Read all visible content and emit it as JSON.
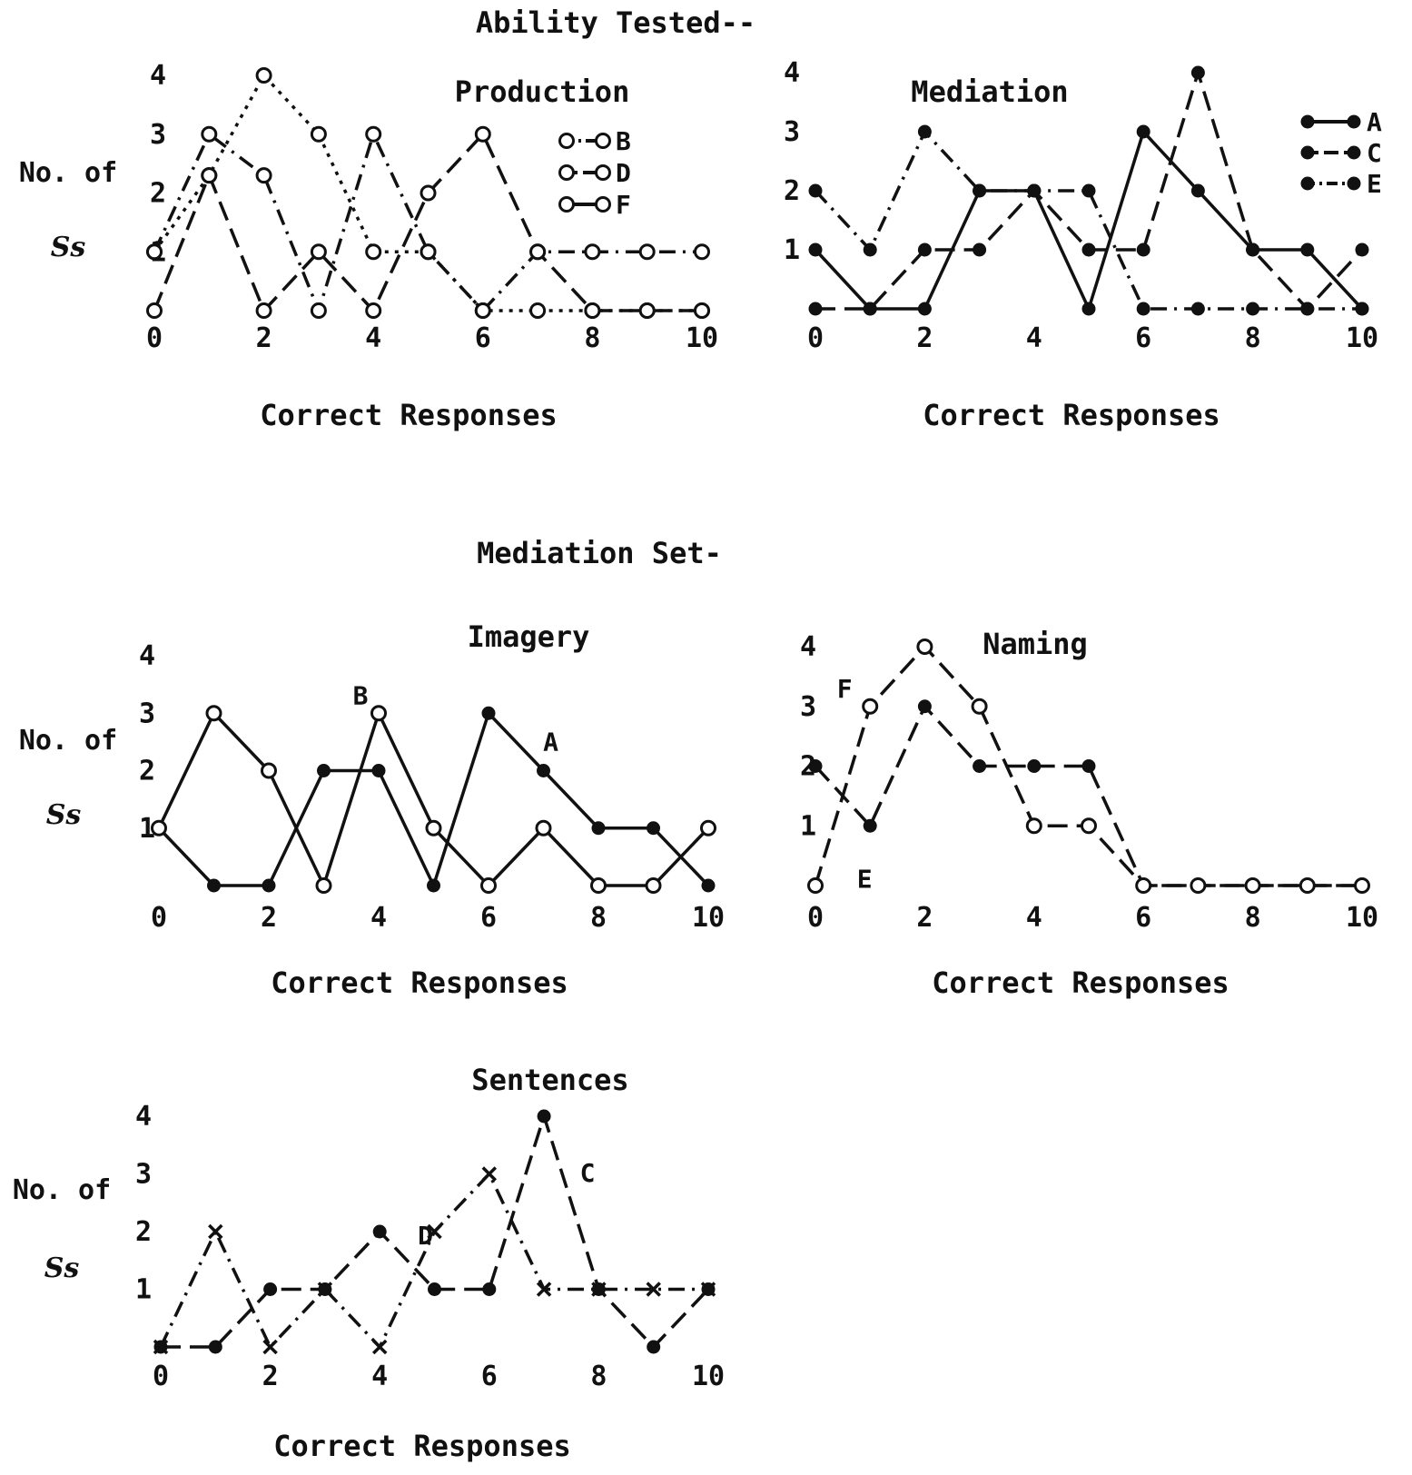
{
  "headings": {
    "ability_tested": "Ability Tested--",
    "mediation_set": "Mediation Set-"
  },
  "chart_data": [
    {
      "id": "production",
      "type": "line",
      "title": "Production",
      "xlabel": "Correct Responses",
      "ylabel_lines": [
        "No. of",
        "Ss"
      ],
      "x_ticks": [
        0,
        2,
        4,
        6,
        8,
        10
      ],
      "y_ticks": [
        1,
        2,
        3,
        4
      ],
      "xlim": [
        0,
        10
      ],
      "ylim": [
        0,
        4
      ],
      "legend_position": "top-right",
      "series": [
        {
          "name": "B",
          "style": "dash-dot",
          "x": [
            0,
            1,
            2,
            3,
            4,
            5,
            6,
            7,
            8,
            9,
            10
          ],
          "y": [
            1,
            3,
            2.3,
            0,
            3,
            1,
            0,
            1,
            1,
            1,
            1
          ]
        },
        {
          "name": "D",
          "style": "dashed",
          "x": [
            0,
            1,
            2,
            3,
            4,
            5,
            6,
            7,
            8,
            9,
            10
          ],
          "y": [
            0,
            2.3,
            0,
            1,
            0,
            2,
            3,
            1,
            0,
            0,
            0
          ]
        },
        {
          "name": "F",
          "style": "dotted",
          "x": [
            0,
            1,
            2,
            3,
            4,
            5,
            6,
            7,
            8,
            9,
            10
          ],
          "y": [
            1,
            2.3,
            4,
            3,
            1,
            1,
            0,
            0,
            0,
            0,
            0
          ]
        }
      ]
    },
    {
      "id": "mediation",
      "type": "line",
      "title": "Mediation",
      "xlabel": "Correct Responses",
      "x_ticks": [
        0,
        2,
        4,
        6,
        8,
        10
      ],
      "y_ticks": [
        1,
        2,
        3,
        4
      ],
      "xlim": [
        0,
        10
      ],
      "ylim": [
        0,
        4
      ],
      "legend_position": "top-right",
      "series": [
        {
          "name": "A",
          "style": "solid",
          "x": [
            0,
            1,
            2,
            3,
            4,
            5,
            6,
            7,
            8,
            9,
            10
          ],
          "y": [
            1,
            0,
            0,
            2,
            2,
            0,
            3,
            2,
            1,
            1,
            0
          ]
        },
        {
          "name": "C",
          "style": "dashed",
          "x": [
            0,
            1,
            2,
            3,
            4,
            5,
            6,
            7,
            8,
            9,
            10
          ],
          "y": [
            0,
            0,
            1,
            1,
            2,
            1,
            1,
            4,
            1,
            0,
            1
          ]
        },
        {
          "name": "E",
          "style": "dash-dot",
          "x": [
            0,
            1,
            2,
            3,
            4,
            5,
            6,
            7,
            8,
            9,
            10
          ],
          "y": [
            2,
            1,
            3,
            2,
            2,
            2,
            0,
            0,
            0,
            0,
            0
          ]
        }
      ]
    },
    {
      "id": "imagery",
      "type": "line",
      "title": "Imagery",
      "xlabel": "Correct Responses",
      "ylabel_lines": [
        "No. of",
        "Ss"
      ],
      "x_ticks": [
        0,
        2,
        4,
        6,
        8,
        10
      ],
      "y_ticks": [
        1,
        2,
        3,
        4
      ],
      "xlim": [
        0,
        10
      ],
      "ylim": [
        0,
        4
      ],
      "series": [
        {
          "name": "A",
          "style": "solid",
          "x": [
            0,
            1,
            2,
            3,
            4,
            5,
            6,
            7,
            8,
            9,
            10
          ],
          "y": [
            1,
            0,
            0,
            2,
            2,
            0,
            3,
            2,
            1,
            1,
            0
          ]
        },
        {
          "name": "B",
          "style": "solid",
          "x": [
            0,
            1,
            2,
            3,
            4,
            5,
            6,
            7,
            8,
            9,
            10
          ],
          "y": [
            1,
            3,
            2,
            0,
            3,
            1,
            0,
            1,
            0,
            0,
            1
          ]
        }
      ]
    },
    {
      "id": "naming",
      "type": "line",
      "title": "Naming",
      "xlabel": "Correct Responses",
      "x_ticks": [
        0,
        2,
        4,
        6,
        8,
        10
      ],
      "y_ticks": [
        1,
        2,
        3,
        4
      ],
      "xlim": [
        0,
        10
      ],
      "ylim": [
        0,
        4
      ],
      "series": [
        {
          "name": "E",
          "style": "dashed",
          "x": [
            0,
            1,
            2,
            3,
            4,
            5,
            6,
            7,
            8,
            9,
            10
          ],
          "y": [
            2,
            1,
            3,
            2,
            2,
            2,
            0,
            0,
            0,
            0,
            0
          ]
        },
        {
          "name": "F",
          "style": "dashed",
          "x": [
            0,
            1,
            2,
            3,
            4,
            5,
            6,
            7,
            8,
            9,
            10
          ],
          "y": [
            0,
            3,
            4,
            3,
            1,
            1,
            0,
            0,
            0,
            0,
            0
          ]
        }
      ]
    },
    {
      "id": "sentences",
      "type": "line",
      "title": "Sentences",
      "xlabel": "Correct Responses",
      "ylabel_lines": [
        "No. of",
        "Ss"
      ],
      "x_ticks": [
        0,
        2,
        4,
        6,
        8,
        10
      ],
      "y_ticks": [
        1,
        2,
        3,
        4
      ],
      "xlim": [
        0,
        10
      ],
      "ylim": [
        0,
        4
      ],
      "series": [
        {
          "name": "C",
          "style": "dashed",
          "x": [
            0,
            1,
            2,
            3,
            4,
            5,
            6,
            7,
            8,
            9,
            10
          ],
          "y": [
            0,
            0,
            1,
            1,
            2,
            1,
            1,
            4,
            1,
            0,
            1
          ]
        },
        {
          "name": "D",
          "style": "dash-dot",
          "x": [
            0,
            1,
            2,
            3,
            4,
            5,
            6,
            7,
            8,
            9,
            10
          ],
          "y": [
            0,
            2,
            0,
            1,
            0,
            2,
            3,
            1,
            1,
            1,
            1
          ]
        }
      ]
    }
  ]
}
